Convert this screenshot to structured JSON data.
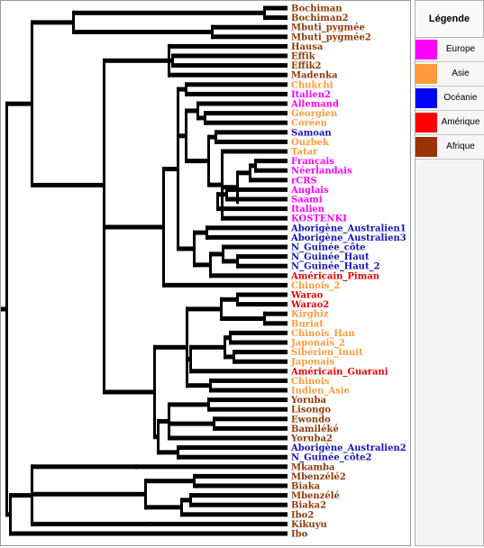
{
  "legend": {
    "title": "Légende",
    "items": [
      {
        "label": "Europe",
        "color": "#ff00ff"
      },
      {
        "label": "Asie",
        "color": "#ff9a3c"
      },
      {
        "label": "Océanie",
        "color": "#0000ff"
      },
      {
        "label": "Amérique",
        "color": "#ff0000"
      },
      {
        "label": "Afrique",
        "color": "#993300"
      }
    ]
  },
  "colors": {
    "Europe": "#ff00ff",
    "Asie": "#ff9a3c",
    "Océanie": "#1414b4",
    "Amérique": "#e60000",
    "Afrique": "#8b3a0a",
    "branch": "#000000"
  },
  "leaves": [
    {
      "label": "Bochiman",
      "region": "Afrique"
    },
    {
      "label": "Bochiman2",
      "region": "Afrique"
    },
    {
      "label": "Mbuti_pygmée",
      "region": "Afrique"
    },
    {
      "label": "Mbuti_pygmée2",
      "region": "Afrique"
    },
    {
      "label": "Hausa",
      "region": "Afrique"
    },
    {
      "label": "Effik",
      "region": "Afrique"
    },
    {
      "label": "Effik2",
      "region": "Afrique"
    },
    {
      "label": "Madenka",
      "region": "Afrique"
    },
    {
      "label": "Chukchi",
      "region": "Asie"
    },
    {
      "label": "Italien2",
      "region": "Europe"
    },
    {
      "label": "Allemand",
      "region": "Europe"
    },
    {
      "label": "Géorgien",
      "region": "Asie"
    },
    {
      "label": "Coréen",
      "region": "Asie"
    },
    {
      "label": "Samoan",
      "region": "Océanie"
    },
    {
      "label": "Ouzbek",
      "region": "Asie"
    },
    {
      "label": "Tatar",
      "region": "Asie"
    },
    {
      "label": "Français",
      "region": "Europe"
    },
    {
      "label": "Néerlandais",
      "region": "Europe"
    },
    {
      "label": "rCRS",
      "region": "Europe"
    },
    {
      "label": "Anglais",
      "region": "Europe"
    },
    {
      "label": "Saami",
      "region": "Europe"
    },
    {
      "label": "Italien",
      "region": "Europe"
    },
    {
      "label": "KOSTENKI",
      "region": "Europe"
    },
    {
      "label": "Aborigène_Australien1",
      "region": "Océanie"
    },
    {
      "label": "Aborigène_Australien3",
      "region": "Océanie"
    },
    {
      "label": "N_Guinée_côte",
      "region": "Océanie"
    },
    {
      "label": "N_Guinée_Haut",
      "region": "Océanie"
    },
    {
      "label": "N_Guinée_Haut_2",
      "region": "Océanie"
    },
    {
      "label": "Américain_Piman",
      "region": "Amérique"
    },
    {
      "label": "Chinois_2",
      "region": "Asie"
    },
    {
      "label": "Warao",
      "region": "Amérique"
    },
    {
      "label": "Warao2",
      "region": "Amérique"
    },
    {
      "label": "Kirghiz",
      "region": "Asie"
    },
    {
      "label": "Buriat",
      "region": "Asie"
    },
    {
      "label": "Chinois_Han",
      "region": "Asie"
    },
    {
      "label": "Japonais_2",
      "region": "Asie"
    },
    {
      "label": "Sibérien_Inuit",
      "region": "Asie"
    },
    {
      "label": "Japonais",
      "region": "Asie"
    },
    {
      "label": "Américain_Guarani",
      "region": "Amérique"
    },
    {
      "label": "Chinois",
      "region": "Asie"
    },
    {
      "label": "Indien_Asie",
      "region": "Asie"
    },
    {
      "label": "Yoruba",
      "region": "Afrique"
    },
    {
      "label": "Lisongo",
      "region": "Afrique"
    },
    {
      "label": "Ewondo",
      "region": "Afrique"
    },
    {
      "label": "Bamiléké",
      "region": "Afrique"
    },
    {
      "label": "Yoruba2",
      "region": "Afrique"
    },
    {
      "label": "Aborigène_Australien2",
      "region": "Océanie"
    },
    {
      "label": "N_Guinée_côte2",
      "region": "Océanie"
    },
    {
      "label": "Mkamba",
      "region": "Afrique"
    },
    {
      "label": "Mbenzélé2",
      "region": "Afrique"
    },
    {
      "label": "Biaka",
      "region": "Afrique"
    },
    {
      "label": "Mbenzélé",
      "region": "Afrique"
    },
    {
      "label": "Biaka2",
      "region": "Afrique"
    },
    {
      "label": "Ibo2",
      "region": "Afrique"
    },
    {
      "label": "Kikuyu",
      "region": "Afrique"
    },
    {
      "label": "Ibo",
      "region": "Afrique"
    }
  ]
}
